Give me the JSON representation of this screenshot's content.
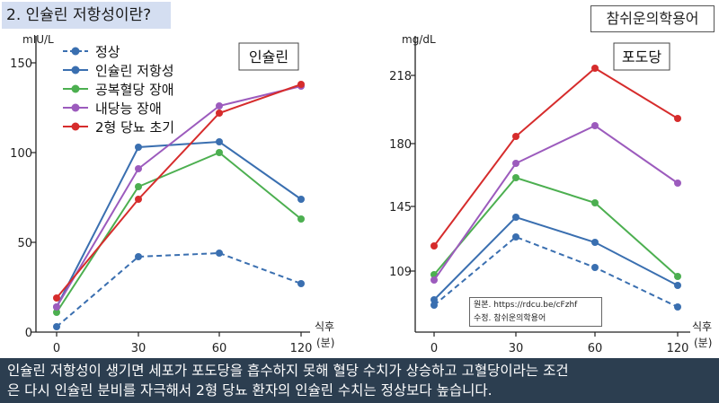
{
  "header": {
    "title": "2. 인슐린 저항성이란?",
    "brand": "참쉬운의학용어"
  },
  "colors": {
    "normal": "#3a6fb0",
    "insulin_resistance": "#3a6fb0",
    "fasting_hyperglycemia": "#4caf50",
    "impaired_tolerance": "#9c5bbd",
    "early_t2dm": "#d62c2c"
  },
  "chart_data": [
    {
      "type": "line",
      "title": "인슐린",
      "ylabel": "mIU/L",
      "xlabel_line1": "식후",
      "xlabel_line2": "(분)",
      "categories": [
        "0",
        "30",
        "60",
        "120"
      ],
      "ylim": [
        0,
        165
      ],
      "yticks": [
        0,
        50,
        100,
        150
      ],
      "legend_position": "top-left",
      "series": [
        {
          "name": "정상",
          "color": "#3a6fb0",
          "dashed": true,
          "values": [
            3,
            42,
            44,
            27
          ]
        },
        {
          "name": "인슐린 저항성",
          "color": "#3a6fb0",
          "dashed": false,
          "values": [
            14,
            103,
            106,
            74
          ]
        },
        {
          "name": "공복혈당 장애",
          "color": "#4caf50",
          "dashed": false,
          "values": [
            11,
            81,
            100,
            63
          ]
        },
        {
          "name": "내당능 장애",
          "color": "#9c5bbd",
          "dashed": false,
          "values": [
            14,
            91,
            126,
            137
          ]
        },
        {
          "name": "2형 당뇨 초기",
          "color": "#d62c2c",
          "dashed": false,
          "values": [
            19,
            74,
            122,
            138
          ]
        }
      ]
    },
    {
      "type": "line",
      "title": "포도당",
      "ylabel": "mg/dL",
      "xlabel_line1": "식후",
      "xlabel_line2": "(분)",
      "categories": [
        "0",
        "30",
        "60",
        "120"
      ],
      "ylim": [
        75,
        240
      ],
      "yticks": [
        109,
        145,
        180,
        218
      ],
      "series": [
        {
          "name": "정상",
          "color": "#3a6fb0",
          "dashed": true,
          "values": [
            90,
            128,
            111,
            89
          ]
        },
        {
          "name": "인슐린 저항성",
          "color": "#3a6fb0",
          "dashed": false,
          "values": [
            93,
            139,
            125,
            101
          ]
        },
        {
          "name": "공복혈당 장애",
          "color": "#4caf50",
          "dashed": false,
          "values": [
            107,
            161,
            147,
            106
          ]
        },
        {
          "name": "내당능 장애",
          "color": "#9c5bbd",
          "dashed": false,
          "values": [
            104,
            169,
            190,
            158
          ]
        },
        {
          "name": "2형 당뇨 초기",
          "color": "#d62c2c",
          "dashed": false,
          "values": [
            123,
            184,
            222,
            194
          ]
        }
      ]
    }
  ],
  "source": {
    "line1": "원본. https://rdcu.be/cFzhf",
    "line2": "수정. 참쉬운의학용어"
  },
  "caption": {
    "line1": "인슐린 저항성이 생기면 세포가 포도당을 흡수하지 못해 혈당 수치가 상승하고 고혈당이라는 조건",
    "line2": "은 다시 인슐린 분비를 자극해서 2형 당뇨 환자의 인슐린 수치는 정상보다 높습니다."
  }
}
